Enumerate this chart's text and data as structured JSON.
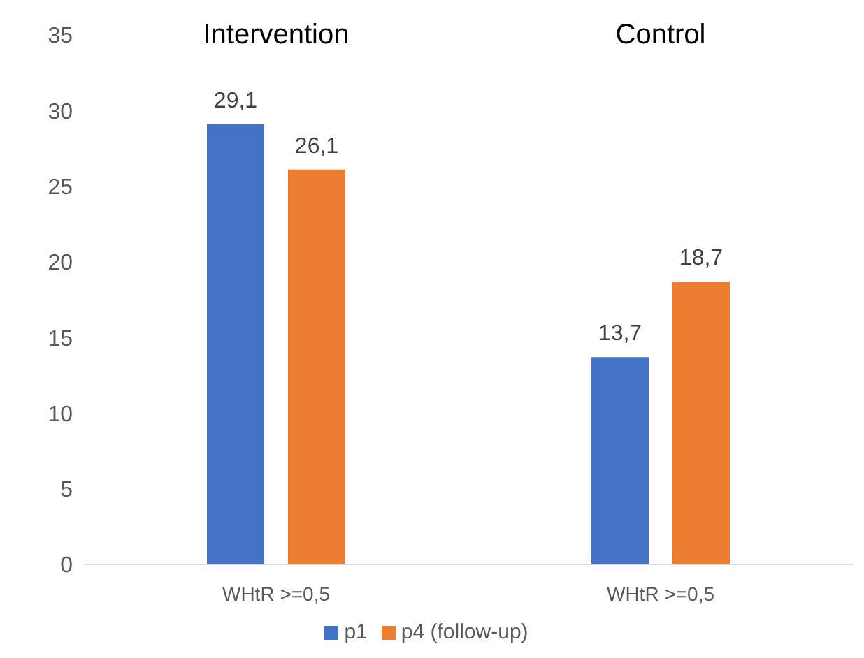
{
  "chart_data": {
    "type": "bar",
    "categories": [
      "WHtR >=0,5",
      "WHtR >=0,5"
    ],
    "series": [
      {
        "name": "p1",
        "color": "#4472c4",
        "values": [
          29.1,
          13.7
        ],
        "value_labels": [
          "29,1",
          "13,7"
        ]
      },
      {
        "name": "p4 (follow-up)",
        "color": "#ed7d31",
        "values": [
          26.1,
          18.7
        ],
        "value_labels": [
          "26,1",
          "18,7"
        ]
      }
    ],
    "annotations": [
      "Intervention",
      "Control"
    ],
    "ylim": [
      0,
      35
    ],
    "yticks": [
      0,
      5,
      10,
      15,
      20,
      25,
      30,
      35
    ],
    "grid": false,
    "legend": "bottom"
  }
}
